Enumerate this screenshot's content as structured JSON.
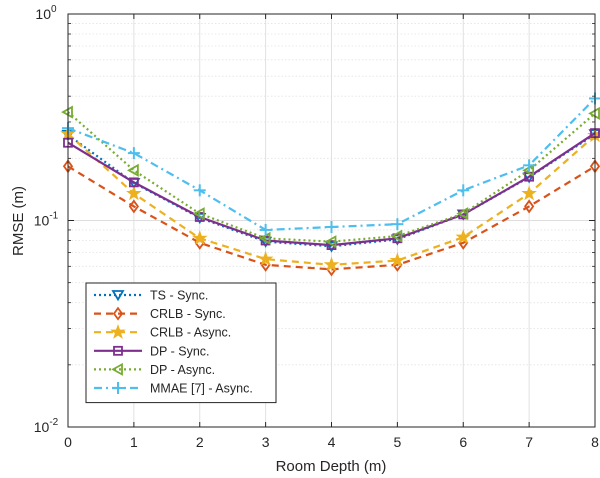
{
  "chart_data": {
    "type": "line",
    "xlabel": "Room Depth (m)",
    "ylabel": "RMSE (m)",
    "x": [
      0,
      1,
      2,
      3,
      4,
      5,
      6,
      7,
      8
    ],
    "xlim": [
      0,
      8
    ],
    "ylim": [
      0.01,
      1
    ],
    "yscale": "log",
    "grid": true,
    "legend_position": "bottom-left",
    "x_ticks": [
      "0",
      "1",
      "2",
      "3",
      "4",
      "5",
      "6",
      "7",
      "8"
    ],
    "y_ticks": [
      {
        "base": "10",
        "exp": "-2",
        "value": 0.01
      },
      {
        "base": "10",
        "exp": "-1",
        "value": 0.1
      },
      {
        "base": "10",
        "exp": "0",
        "value": 1
      }
    ],
    "series": [
      {
        "name": "TS - Sync.",
        "color": "#0072BD",
        "dash": "dotted",
        "marker": "triangle-down",
        "values": [
          0.26,
          0.152,
          0.103,
          0.079,
          0.075,
          0.081,
          0.107,
          0.162,
          0.262
        ]
      },
      {
        "name": "CRLB - Sync.",
        "color": "#D95319",
        "dash": "dashed",
        "marker": "diamond",
        "values": [
          0.183,
          0.117,
          0.078,
          0.061,
          0.058,
          0.061,
          0.078,
          0.117,
          0.183
        ]
      },
      {
        "name": "CRLB - Async.",
        "color": "#EDB120",
        "dash": "dashed",
        "marker": "star",
        "values": [
          0.263,
          0.135,
          0.082,
          0.065,
          0.061,
          0.064,
          0.083,
          0.135,
          0.258
        ]
      },
      {
        "name": "DP - Sync.",
        "color": "#7E2F8E",
        "dash": "solid",
        "marker": "square",
        "values": [
          0.238,
          0.153,
          0.104,
          0.08,
          0.076,
          0.082,
          0.107,
          0.163,
          0.265
        ]
      },
      {
        "name": "DP - Async.",
        "color": "#77AC30",
        "dash": "dotted",
        "marker": "triangle-left",
        "values": [
          0.335,
          0.175,
          0.108,
          0.082,
          0.079,
          0.084,
          0.108,
          0.175,
          0.33
        ]
      },
      {
        "name": "MMAE [7] - Async.",
        "color": "#4DBEEE",
        "dash": "dashdot",
        "marker": "plus",
        "values": [
          0.28,
          0.212,
          0.14,
          0.09,
          0.093,
          0.096,
          0.14,
          0.185,
          0.39
        ]
      }
    ]
  }
}
